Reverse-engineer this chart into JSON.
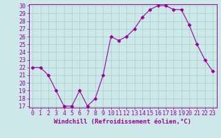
{
  "x": [
    0,
    1,
    2,
    3,
    4,
    5,
    6,
    7,
    8,
    9,
    10,
    11,
    12,
    13,
    14,
    15,
    16,
    17,
    18,
    19,
    20,
    21,
    22,
    23
  ],
  "y": [
    22,
    22,
    21,
    19,
    17,
    17,
    19,
    17,
    18,
    21,
    26,
    25.5,
    26,
    27,
    28.5,
    29.5,
    30,
    30,
    29.5,
    29.5,
    27.5,
    25,
    23,
    21.5
  ],
  "line_color": "#990099",
  "marker": "D",
  "marker_size": 2.5,
  "bg_color": "#cce8e8",
  "grid_color": "#aacccc",
  "xlabel": "Windchill (Refroidissement éolien,°C)",
  "xlabel_fontsize": 6.5,
  "tick_fontsize": 6,
  "ylim": [
    17,
    30
  ],
  "xlim": [
    -0.5,
    23.5
  ],
  "yticks": [
    17,
    18,
    19,
    20,
    21,
    22,
    23,
    24,
    25,
    26,
    27,
    28,
    29,
    30
  ],
  "xticks": [
    0,
    1,
    2,
    3,
    4,
    5,
    6,
    7,
    8,
    9,
    10,
    11,
    12,
    13,
    14,
    15,
    16,
    17,
    18,
    19,
    20,
    21,
    22,
    23
  ]
}
